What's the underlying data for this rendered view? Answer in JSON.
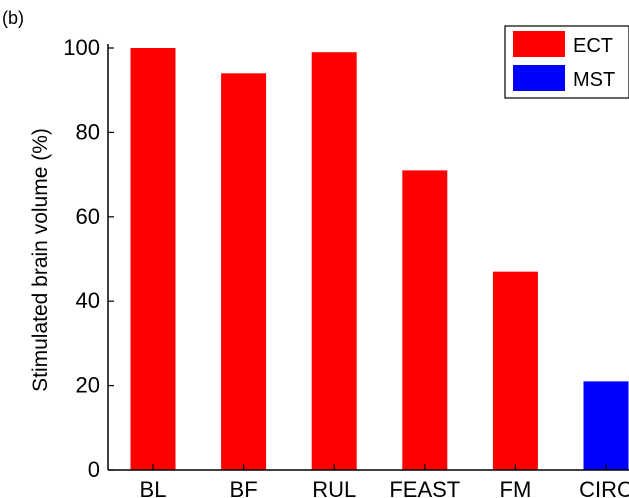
{
  "panel_label": "(b)",
  "chart_data": {
    "type": "bar",
    "categories": [
      "BL",
      "BF",
      "RUL",
      "FEAST",
      "FM",
      "CIRC"
    ],
    "series": [
      {
        "name": "ECT",
        "color": "#ff0000",
        "values": [
          100,
          94,
          99,
          71,
          47,
          null
        ]
      },
      {
        "name": "MST",
        "color": "#0000ff",
        "values": [
          null,
          null,
          null,
          null,
          null,
          21
        ]
      }
    ],
    "ylabel": "Stimulated brain volume (%)",
    "xlabel": "",
    "ylim": [
      0,
      100
    ],
    "yticks": [
      0,
      20,
      40,
      60,
      80,
      100
    ],
    "grid": false,
    "legend_position": "top-right"
  }
}
